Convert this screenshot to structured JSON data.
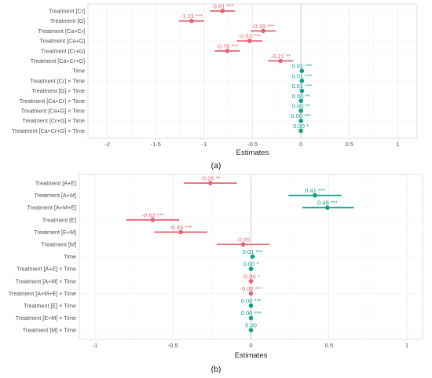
{
  "colors": {
    "negative": "#e06675",
    "positive": "#12a085"
  },
  "chart_data": [
    {
      "type": "scatter",
      "panel": "(a)",
      "xlabel": "Estimates",
      "xlim": [
        -2.2,
        1.2
      ],
      "xticks": [
        -2,
        -1.5,
        -1,
        -0.5,
        0,
        0.5,
        1
      ],
      "xtick_labels": [
        "-2",
        "-1.5",
        "-1",
        "-0.5",
        "0",
        "0.5",
        "1"
      ],
      "grid": true,
      "terms": [
        {
          "term": "Treatment [Cr]",
          "estimate": -0.81,
          "label": "-0.81 ***",
          "ci": [
            -0.94,
            -0.68
          ]
        },
        {
          "term": "Treatment [G]",
          "estimate": -1.13,
          "label": "-1.13 ***",
          "ci": [
            -1.26,
            -1.0
          ]
        },
        {
          "term": "Treatment [Ca+Cr]",
          "estimate": -0.39,
          "label": "-0.39 ***",
          "ci": [
            -0.52,
            -0.26
          ]
        },
        {
          "term": "Treatment [Ca+G]",
          "estimate": -0.53,
          "label": "-0.53 ***",
          "ci": [
            -0.66,
            -0.4
          ]
        },
        {
          "term": "Treatment [Cr+G]",
          "estimate": -0.76,
          "label": "-0.76 ***",
          "ci": [
            -0.89,
            -0.63
          ]
        },
        {
          "term": "Treatment [Ca+Cr+G]",
          "estimate": -0.21,
          "label": "-0.21 **",
          "ci": [
            -0.34,
            -0.08
          ]
        },
        {
          "term": "Time",
          "estimate": 0.01,
          "label": "0.01 ***",
          "ci": [
            0.005,
            0.015
          ]
        },
        {
          "term": "Treatment [Cr] × Time",
          "estimate": 0.01,
          "label": "0.01 ***",
          "ci": [
            0.005,
            0.015
          ]
        },
        {
          "term": "Treatment [G] × Time",
          "estimate": 0.01,
          "label": "0.01 ***",
          "ci": [
            0.005,
            0.015
          ]
        },
        {
          "term": "Treatment [Ca+Cr] × Time",
          "estimate": 0.0,
          "label": "0.00 **",
          "ci": [
            -0.005,
            0.005
          ]
        },
        {
          "term": "Treatment [Ca+G] × Time",
          "estimate": 0.0,
          "label": "0.00 **",
          "ci": [
            -0.005,
            0.005
          ]
        },
        {
          "term": "Treatment [Cr+G] × Time",
          "estimate": 0.0,
          "label": "0.00 ***",
          "ci": [
            -0.005,
            0.005
          ]
        },
        {
          "term": "Treatment [Ca+Cr+G] × Time",
          "estimate": 0.0,
          "label": "0.00 *",
          "ci": [
            -0.005,
            0.005
          ]
        }
      ]
    },
    {
      "type": "scatter",
      "panel": "(b)",
      "xlabel": "Estimates",
      "xlim": [
        -1.1,
        1.1
      ],
      "xticks": [
        -1,
        -0.5,
        0,
        0.5,
        1
      ],
      "xtick_labels": [
        "-1",
        "-0.5",
        "0",
        "0.5",
        "1"
      ],
      "grid": true,
      "terms": [
        {
          "term": "Treatment [A+E]",
          "estimate": -0.26,
          "label": "-0.26 **",
          "ci": [
            -0.43,
            -0.09
          ]
        },
        {
          "term": "Treatment [A+M]",
          "estimate": 0.41,
          "label": "0.41 ***",
          "ci": [
            0.24,
            0.58
          ]
        },
        {
          "term": "Treatment [A+M+E]",
          "estimate": 0.49,
          "label": "0.49 ***",
          "ci": [
            0.33,
            0.66
          ]
        },
        {
          "term": "Treatment [E]",
          "estimate": -0.63,
          "label": "-0.63 ***",
          "ci": [
            -0.8,
            -0.46
          ]
        },
        {
          "term": "Treatment [E+M]",
          "estimate": -0.45,
          "label": "-0.45 ***",
          "ci": [
            -0.62,
            -0.28
          ]
        },
        {
          "term": "Treatment [M]",
          "estimate": -0.05,
          "label": "-0.05",
          "ci": [
            -0.22,
            0.12
          ]
        },
        {
          "term": "Time",
          "estimate": 0.01,
          "label": "0.01 ***",
          "ci": [
            0.005,
            0.015
          ]
        },
        {
          "term": "Treatment [A+E] × Time",
          "estimate": 0.0,
          "label": "0.00 *",
          "ci": [
            -0.005,
            0.005
          ]
        },
        {
          "term": "Treatment [A+M] × Time",
          "estimate": -0.0,
          "label": "-0.00 *",
          "ci": [
            -0.005,
            0.005
          ]
        },
        {
          "term": "Treatment [A+M+E] × Time",
          "estimate": -0.0,
          "label": "-0.00 ***",
          "ci": [
            -0.005,
            0.005
          ]
        },
        {
          "term": "Treatment [E] × Time",
          "estimate": 0.0,
          "label": "0.00 ***",
          "ci": [
            -0.005,
            0.005
          ]
        },
        {
          "term": "Treatment [E+M] × Time",
          "estimate": 0.0,
          "label": "0.00 ***",
          "ci": [
            -0.005,
            0.005
          ]
        },
        {
          "term": "Treatment [M] × Time",
          "estimate": 0.0,
          "label": "0.00",
          "ci": [
            -0.005,
            0.005
          ]
        }
      ]
    }
  ]
}
